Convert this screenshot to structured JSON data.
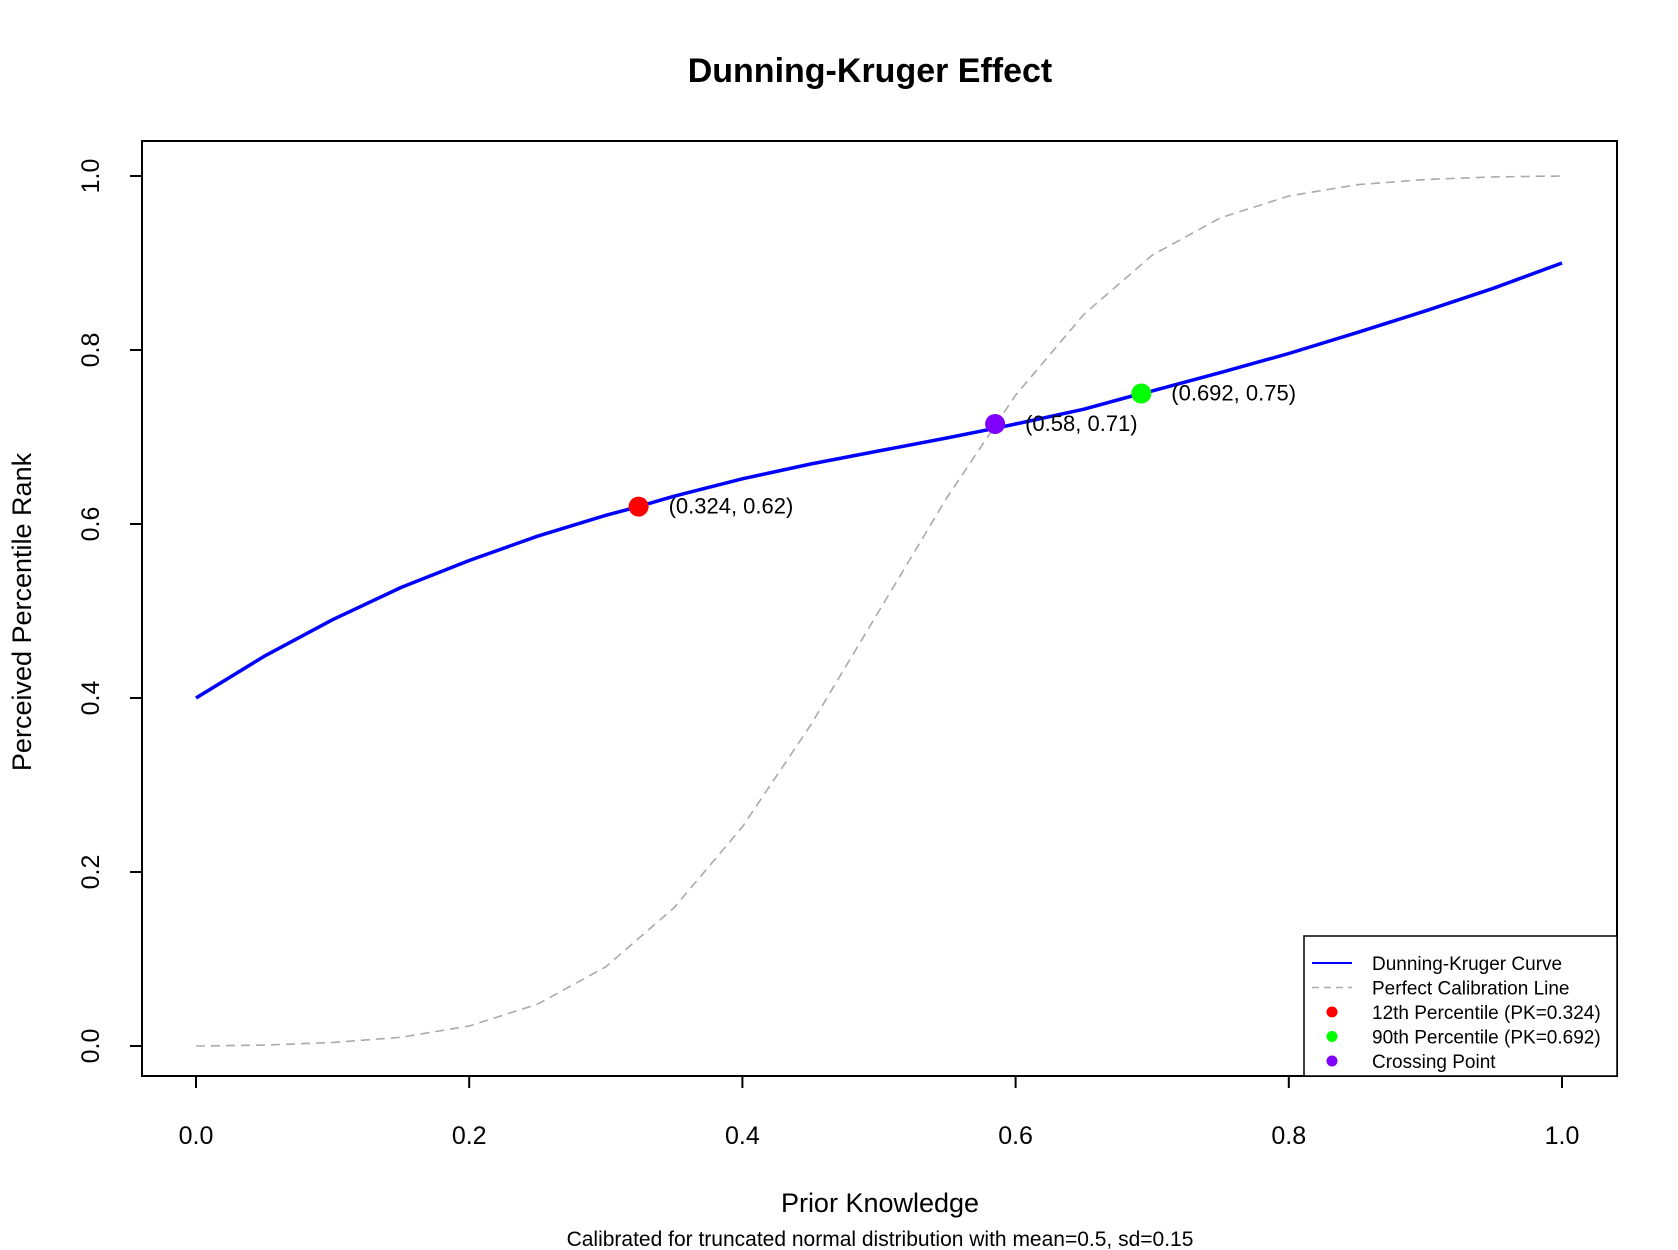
{
  "chart_data": {
    "type": "line",
    "title": "Dunning-Kruger Effect",
    "subtitle": "Calibrated for truncated normal distribution with mean=0.5, sd=0.15",
    "xlabel": "Prior Knowledge",
    "ylabel": "Perceived Percentile Rank",
    "xlim": [
      0.0,
      1.0
    ],
    "ylim": [
      0.0,
      1.0
    ],
    "x_ticks": [
      "0.0",
      "0.2",
      "0.4",
      "0.6",
      "0.8",
      "1.0"
    ],
    "y_ticks": [
      "0.0",
      "0.2",
      "0.4",
      "0.6",
      "0.8",
      "1.0"
    ],
    "grid": false,
    "legend_position": "bottom-right",
    "series": [
      {
        "name": "Dunning-Kruger Curve",
        "style": "solid",
        "color": "#0000ff",
        "x": [
          0.0,
          0.05,
          0.1,
          0.15,
          0.2,
          0.25,
          0.3,
          0.324,
          0.35,
          0.4,
          0.45,
          0.5,
          0.55,
          0.585,
          0.6,
          0.65,
          0.692,
          0.7,
          0.75,
          0.8,
          0.85,
          0.9,
          0.95,
          1.0
        ],
        "y": [
          0.4,
          0.448,
          0.49,
          0.527,
          0.558,
          0.586,
          0.61,
          0.62,
          0.632,
          0.652,
          0.669,
          0.684,
          0.699,
          0.71,
          0.715,
          0.732,
          0.75,
          0.753,
          0.774,
          0.796,
          0.82,
          0.845,
          0.871,
          0.9
        ]
      },
      {
        "name": "Perfect Calibration Line",
        "style": "dashed",
        "color": "#aaaaaa",
        "x": [
          0.0,
          0.05,
          0.1,
          0.15,
          0.2,
          0.25,
          0.3,
          0.35,
          0.4,
          0.45,
          0.5,
          0.55,
          0.6,
          0.65,
          0.7,
          0.75,
          0.8,
          0.85,
          0.9,
          0.95,
          1.0
        ],
        "y": [
          0.0,
          0.001,
          0.004,
          0.01,
          0.023,
          0.048,
          0.091,
          0.159,
          0.252,
          0.369,
          0.5,
          0.631,
          0.748,
          0.841,
          0.909,
          0.952,
          0.977,
          0.99,
          0.996,
          0.999,
          1.0
        ]
      }
    ],
    "points": [
      {
        "name": "12th Percentile (PK=0.324)",
        "x": 0.324,
        "y": 0.62,
        "label": "(0.324, 0.62)",
        "color": "#ff0000"
      },
      {
        "name": "90th Percentile (PK=0.692)",
        "x": 0.692,
        "y": 0.75,
        "label": "(0.692, 0.75)",
        "color": "#00ff00"
      },
      {
        "name": "Crossing Point",
        "x": 0.585,
        "y": 0.715,
        "label": "(0.58, 0.71)",
        "color": "#8000ff"
      }
    ]
  }
}
